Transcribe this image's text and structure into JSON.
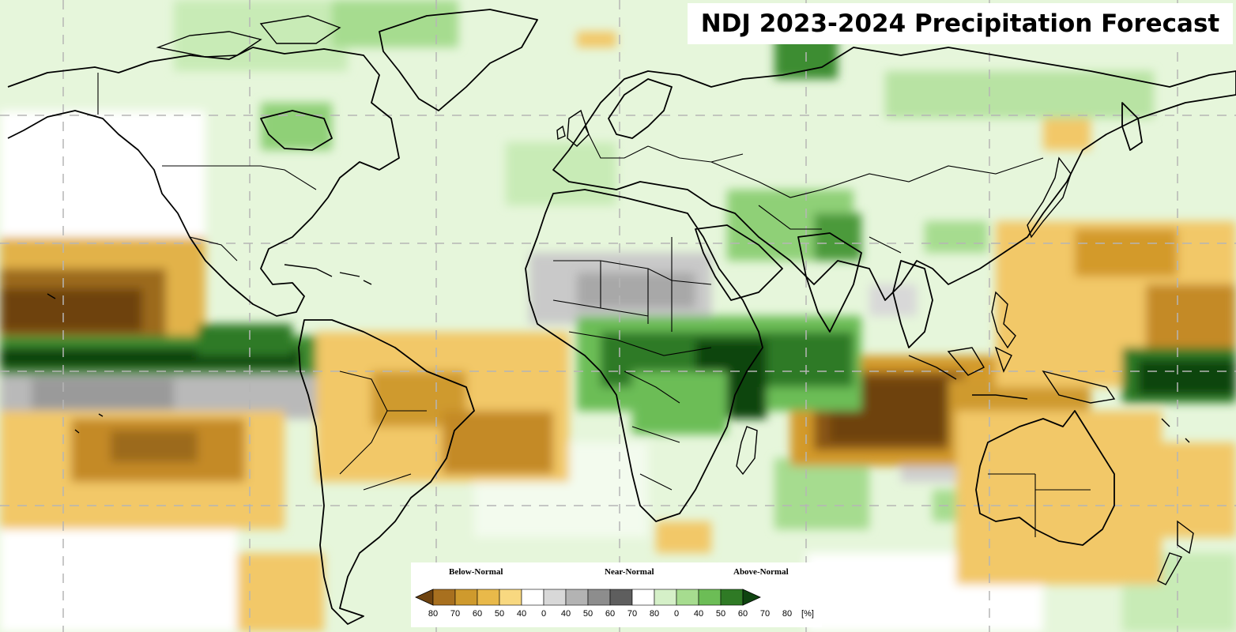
{
  "title": "NDJ 2023-2024 Precipitation Forecast",
  "legend": {
    "categories": [
      "Below-Normal",
      "Near-Normal",
      "Above-Normal"
    ],
    "ticks": [
      "80",
      "70",
      "60",
      "50",
      "40",
      "0",
      "40",
      "50",
      "60",
      "70",
      "80",
      "0",
      "40",
      "50",
      "60",
      "70",
      "80"
    ],
    "unit": "[%]",
    "below_colors": [
      "#6e4310",
      "#a8701f",
      "#cf9a2d",
      "#e9b94a",
      "#f8d880"
    ],
    "near_colors": [
      "#ffffff",
      "#d8d8d8",
      "#b3b3b3",
      "#8d8d8d",
      "#5e5e5e"
    ],
    "above_colors": [
      "#ffffff",
      "#d5f0c8",
      "#a6dc8f",
      "#6cbd56",
      "#2f7a25",
      "#0f4410"
    ]
  },
  "colors": {
    "ocean_base": "#e2f5d6",
    "land_base": "#ffffff",
    "gridline": "#b5b5b5"
  }
}
